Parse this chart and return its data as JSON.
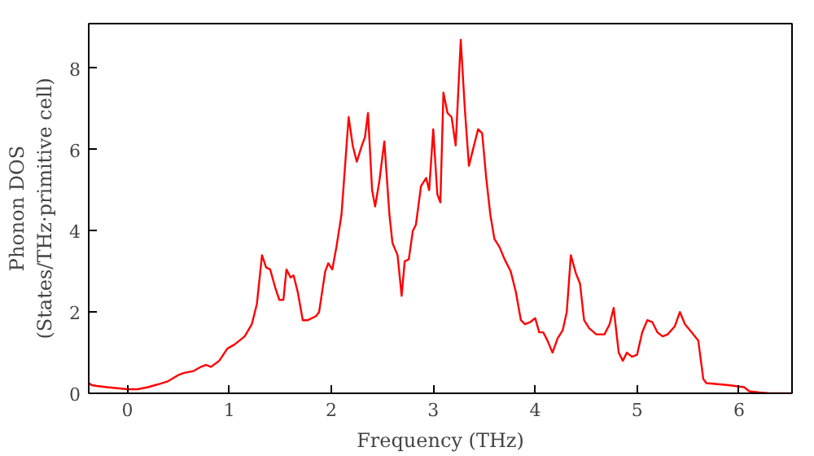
{
  "chart_data": {
    "type": "line",
    "xlabel": "Frequency (THz)",
    "ylabel": "Phonon DOS\n(States/THz·primitive cell)",
    "x": [
      -0.38,
      -0.35,
      -0.3,
      -0.2,
      0,
      0.1,
      0.2,
      0.3,
      0.4,
      0.5,
      0.55,
      0.65,
      0.72,
      0.77,
      0.82,
      0.9,
      0.98,
      1.05,
      1.15,
      1.22,
      1.27,
      1.32,
      1.36,
      1.4,
      1.45,
      1.49,
      1.53,
      1.56,
      1.6,
      1.63,
      1.67,
      1.72,
      1.77,
      1.85,
      1.88,
      1.94,
      1.97,
      2.01,
      2.05,
      2.1,
      2.17,
      2.21,
      2.25,
      2.3,
      2.33,
      2.36,
      2.4,
      2.43,
      2.47,
      2.52,
      2.57,
      2.6,
      2.65,
      2.69,
      2.72,
      2.76,
      2.8,
      2.83,
      2.88,
      2.93,
      2.96,
      3.0,
      3.04,
      3.07,
      3.1,
      3.14,
      3.18,
      3.22,
      3.27,
      3.31,
      3.35,
      3.39,
      3.44,
      3.48,
      3.52,
      3.56,
      3.6,
      3.65,
      3.7,
      3.76,
      3.81,
      3.86,
      3.9,
      3.95,
      4.0,
      4.04,
      4.08,
      4.12,
      4.17,
      4.22,
      4.27,
      4.31,
      4.35,
      4.4,
      4.44,
      4.48,
      4.53,
      4.6,
      4.68,
      4.73,
      4.77,
      4.82,
      4.86,
      4.9,
      4.95,
      5.0,
      5.05,
      5.1,
      5.15,
      5.2,
      5.25,
      5.3,
      5.37,
      5.42,
      5.47,
      5.52,
      5.6,
      5.65,
      5.68,
      5.9,
      6.05,
      6.1,
      6.2,
      6.3,
      6.52
    ],
    "series": [
      {
        "color": "#ff0000",
        "values": [
          0.25,
          0.2,
          0.18,
          0.15,
          0.1,
          0.1,
          0.15,
          0.22,
          0.3,
          0.45,
          0.5,
          0.55,
          0.65,
          0.7,
          0.65,
          0.8,
          1.1,
          1.2,
          1.4,
          1.7,
          2.2,
          3.4,
          3.1,
          3.05,
          2.6,
          2.3,
          2.3,
          3.05,
          2.85,
          2.9,
          2.5,
          1.8,
          1.8,
          1.9,
          2.0,
          3.0,
          3.2,
          3.05,
          3.6,
          4.4,
          6.8,
          6.1,
          5.7,
          6.1,
          6.3,
          6.9,
          5.0,
          4.6,
          5.2,
          6.2,
          4.4,
          3.7,
          3.4,
          2.4,
          3.25,
          3.3,
          4.0,
          4.15,
          5.1,
          5.3,
          5.0,
          6.5,
          4.9,
          4.7,
          7.4,
          6.9,
          6.8,
          6.1,
          8.7,
          7.0,
          5.6,
          6.0,
          6.5,
          6.4,
          5.3,
          4.4,
          3.8,
          3.6,
          3.3,
          3.0,
          2.5,
          1.8,
          1.7,
          1.75,
          1.85,
          1.5,
          1.5,
          1.3,
          1.0,
          1.35,
          1.55,
          2.0,
          3.4,
          2.95,
          2.7,
          1.8,
          1.6,
          1.45,
          1.45,
          1.7,
          2.1,
          1.0,
          0.8,
          1.0,
          0.9,
          0.95,
          1.5,
          1.8,
          1.75,
          1.5,
          1.4,
          1.45,
          1.65,
          2.0,
          1.7,
          1.55,
          1.3,
          0.35,
          0.25,
          0.2,
          0.15,
          0.05,
          0.02,
          0.0,
          0.0
        ]
      }
    ],
    "xlim": [
      -0.38,
      6.52
    ],
    "ylim": [
      0,
      9.1
    ],
    "xticks": [
      0,
      1,
      2,
      3,
      4,
      5,
      6
    ],
    "yticks": [
      0,
      2,
      4,
      6,
      8
    ],
    "marker": "none",
    "line_style": "solid"
  }
}
